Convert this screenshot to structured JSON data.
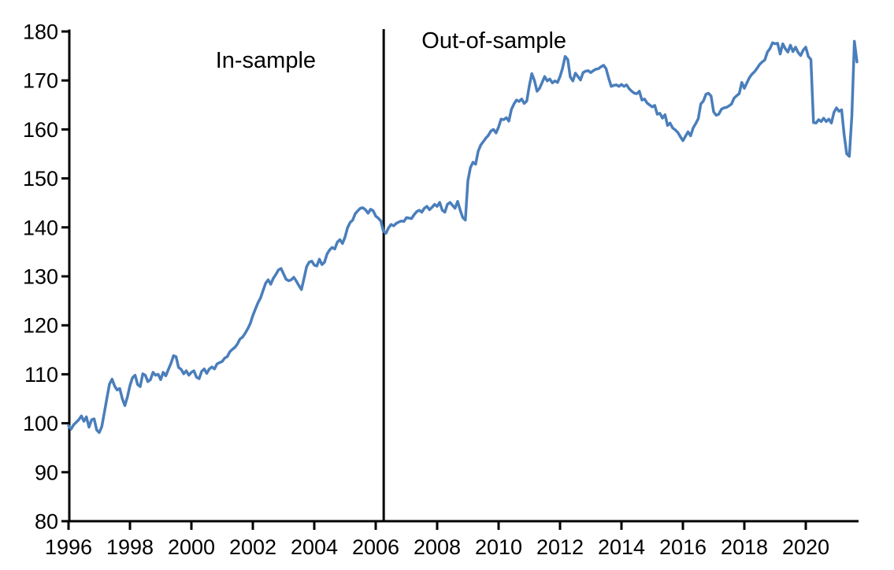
{
  "figure": {
    "background_color": "#ffffff",
    "axis_color": "#000000",
    "line_color": "#4a7ebb",
    "separator_color": "#000000"
  },
  "chart_data": {
    "type": "line",
    "title": "",
    "xlabel": "",
    "ylabel": "",
    "xlim": [
      1995.9,
      2021.9
    ],
    "ylim": [
      80,
      180
    ],
    "grid": false,
    "legend": "none",
    "x_ticks": [
      "1996",
      "1998",
      "2000",
      "2002",
      "2004",
      "2006",
      "2008",
      "2010",
      "2012",
      "2014",
      "2016",
      "2018",
      "2020"
    ],
    "y_ticks": [
      "80",
      "90",
      "100",
      "110",
      "120",
      "130",
      "140",
      "150",
      "160",
      "170",
      "180"
    ],
    "separator_x": 2006.26,
    "annotations": [
      {
        "id": "in-sample-label",
        "text": "In-sample",
        "x": 2002.42,
        "y": 172.6
      },
      {
        "id": "out-of-sample-label",
        "text": "Out-of-sample",
        "x": 2009.85,
        "y": 176.6
      }
    ],
    "series": [
      {
        "name": "Monthly index (1996=100)",
        "color": "#4a7ebb",
        "start_year": 1996,
        "frequency": "monthly",
        "values": [
          99.5,
          98.8,
          99.7,
          100.2,
          100.7,
          101.5,
          100.4,
          101.3,
          99.2,
          100.7,
          100.9,
          98.6,
          98.1,
          99.3,
          102.2,
          105.2,
          108.0,
          109.0,
          107.6,
          106.8,
          107.1,
          105.0,
          103.6,
          105.4,
          107.7,
          109.3,
          109.8,
          107.9,
          107.5,
          110.1,
          109.8,
          108.5,
          108.9,
          110.4,
          109.8,
          110.0,
          108.9,
          110.4,
          109.7,
          111.0,
          112.2,
          113.8,
          113.6,
          111.4,
          111.0,
          110.1,
          110.7,
          109.8,
          110.4,
          110.7,
          109.4,
          109.1,
          110.6,
          111.1,
          110.2,
          111.1,
          111.5,
          111.1,
          112.1,
          112.4,
          112.6,
          113.3,
          113.6,
          114.6,
          115.1,
          115.5,
          116.2,
          117.2,
          117.6,
          118.4,
          119.3,
          120.4,
          122.0,
          123.3,
          124.6,
          125.6,
          127.1,
          128.6,
          129.3,
          128.4,
          129.6,
          130.4,
          131.3,
          131.6,
          130.5,
          129.4,
          129.1,
          129.3,
          129.8,
          129.0,
          128.1,
          127.3,
          129.6,
          132.0,
          132.9,
          133.1,
          132.3,
          132.1,
          133.5,
          132.4,
          132.9,
          134.6,
          135.4,
          135.9,
          135.6,
          137.0,
          137.5,
          136.7,
          138.0,
          139.9,
          141.0,
          141.5,
          142.8,
          143.4,
          143.9,
          144.0,
          143.6,
          142.9,
          143.7,
          143.4,
          142.3,
          141.9,
          141.3,
          139.2,
          138.8,
          139.9,
          140.6,
          140.3,
          140.8,
          141.1,
          141.3,
          141.2,
          142.0,
          141.9,
          141.8,
          142.6,
          143.2,
          143.5,
          143.1,
          143.9,
          144.3,
          143.6,
          144.1,
          144.7,
          144.3,
          145.1,
          143.5,
          143.1,
          144.7,
          145.1,
          144.5,
          143.9,
          145.3,
          143.5,
          142.0,
          141.5,
          149.5,
          152.2,
          153.3,
          152.9,
          155.5,
          156.8,
          157.5,
          158.2,
          158.8,
          159.7,
          160.0,
          159.3,
          160.5,
          162.1,
          162.0,
          162.4,
          161.7,
          164.1,
          165.2,
          166.0,
          165.7,
          166.2,
          165.3,
          165.8,
          168.9,
          171.4,
          170.0,
          167.8,
          168.4,
          169.6,
          170.8,
          169.9,
          170.3,
          169.5,
          169.9,
          169.6,
          170.8,
          172.5,
          174.9,
          174.3,
          170.7,
          169.9,
          171.5,
          170.8,
          170.1,
          171.6,
          171.9,
          172.0,
          171.6,
          172.0,
          172.3,
          172.4,
          172.8,
          173.1,
          172.4,
          170.5,
          168.8,
          169.0,
          169.1,
          168.8,
          169.2,
          168.8,
          169.1,
          168.3,
          167.8,
          167.4,
          167.3,
          167.8,
          166.0,
          166.2,
          165.4,
          165.0,
          164.6,
          164.9,
          163.1,
          163.3,
          162.3,
          163.0,
          160.8,
          161.3,
          160.3,
          159.9,
          159.4,
          158.5,
          157.7,
          158.6,
          159.5,
          158.7,
          160.3,
          161.2,
          162.2,
          165.2,
          165.8,
          167.2,
          167.4,
          166.8,
          163.6,
          162.9,
          163.1,
          164.1,
          164.4,
          164.5,
          164.8,
          165.2,
          166.4,
          166.9,
          167.3,
          169.6,
          168.4,
          169.5,
          170.6,
          171.3,
          171.8,
          172.5,
          173.3,
          173.8,
          174.2,
          175.8,
          176.5,
          177.7,
          177.5,
          177.6,
          175.4,
          177.5,
          176.5,
          175.8,
          177.2,
          175.9,
          176.8,
          175.7,
          175.1,
          176.2,
          176.8,
          174.9,
          174.3,
          161.4,
          161.3,
          162.0,
          161.6,
          162.3,
          161.6,
          162.1,
          161.3,
          163.5,
          164.4,
          163.7,
          164.0,
          158.8,
          155.0,
          154.5,
          162.8,
          178.0,
          173.8
        ]
      }
    ]
  }
}
